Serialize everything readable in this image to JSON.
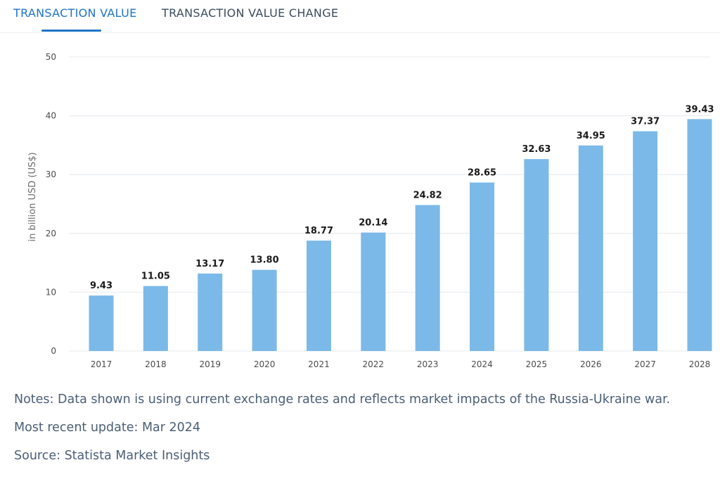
{
  "tabs": [
    {
      "label": "TRANSACTION VALUE",
      "active": true
    },
    {
      "label": "TRANSACTION VALUE CHANGE",
      "active": false
    }
  ],
  "colors": {
    "accent": "#1e74c7",
    "bar": "#7bb9e8",
    "grid": "#e4e8ee",
    "axis_text": "#4a4a4a",
    "label_text": "#1a1a1a"
  },
  "chart_data": {
    "type": "bar",
    "categories": [
      "2017",
      "2018",
      "2019",
      "2020",
      "2021",
      "2022",
      "2023",
      "2024",
      "2025",
      "2026",
      "2027",
      "2028"
    ],
    "values": [
      9.43,
      11.05,
      13.17,
      13.8,
      18.77,
      20.14,
      24.82,
      28.65,
      32.63,
      34.95,
      37.37,
      39.43
    ],
    "value_labels": [
      "9.43",
      "11.05",
      "13.17",
      "13.80",
      "18.77",
      "20.14",
      "24.82",
      "28.65",
      "32.63",
      "34.95",
      "37.37",
      "39.43"
    ],
    "ylabel": "in billion USD (US$)",
    "ylim": [
      0,
      50
    ],
    "yticks": [
      0,
      10,
      20,
      30,
      40,
      50
    ],
    "grid": true
  },
  "notes": {
    "line1": "Notes: Data shown is using current exchange rates and reflects market impacts of the Russia-Ukraine war.",
    "line2": "Most recent update: Mar 2024",
    "line3": "Source: Statista Market Insights"
  }
}
